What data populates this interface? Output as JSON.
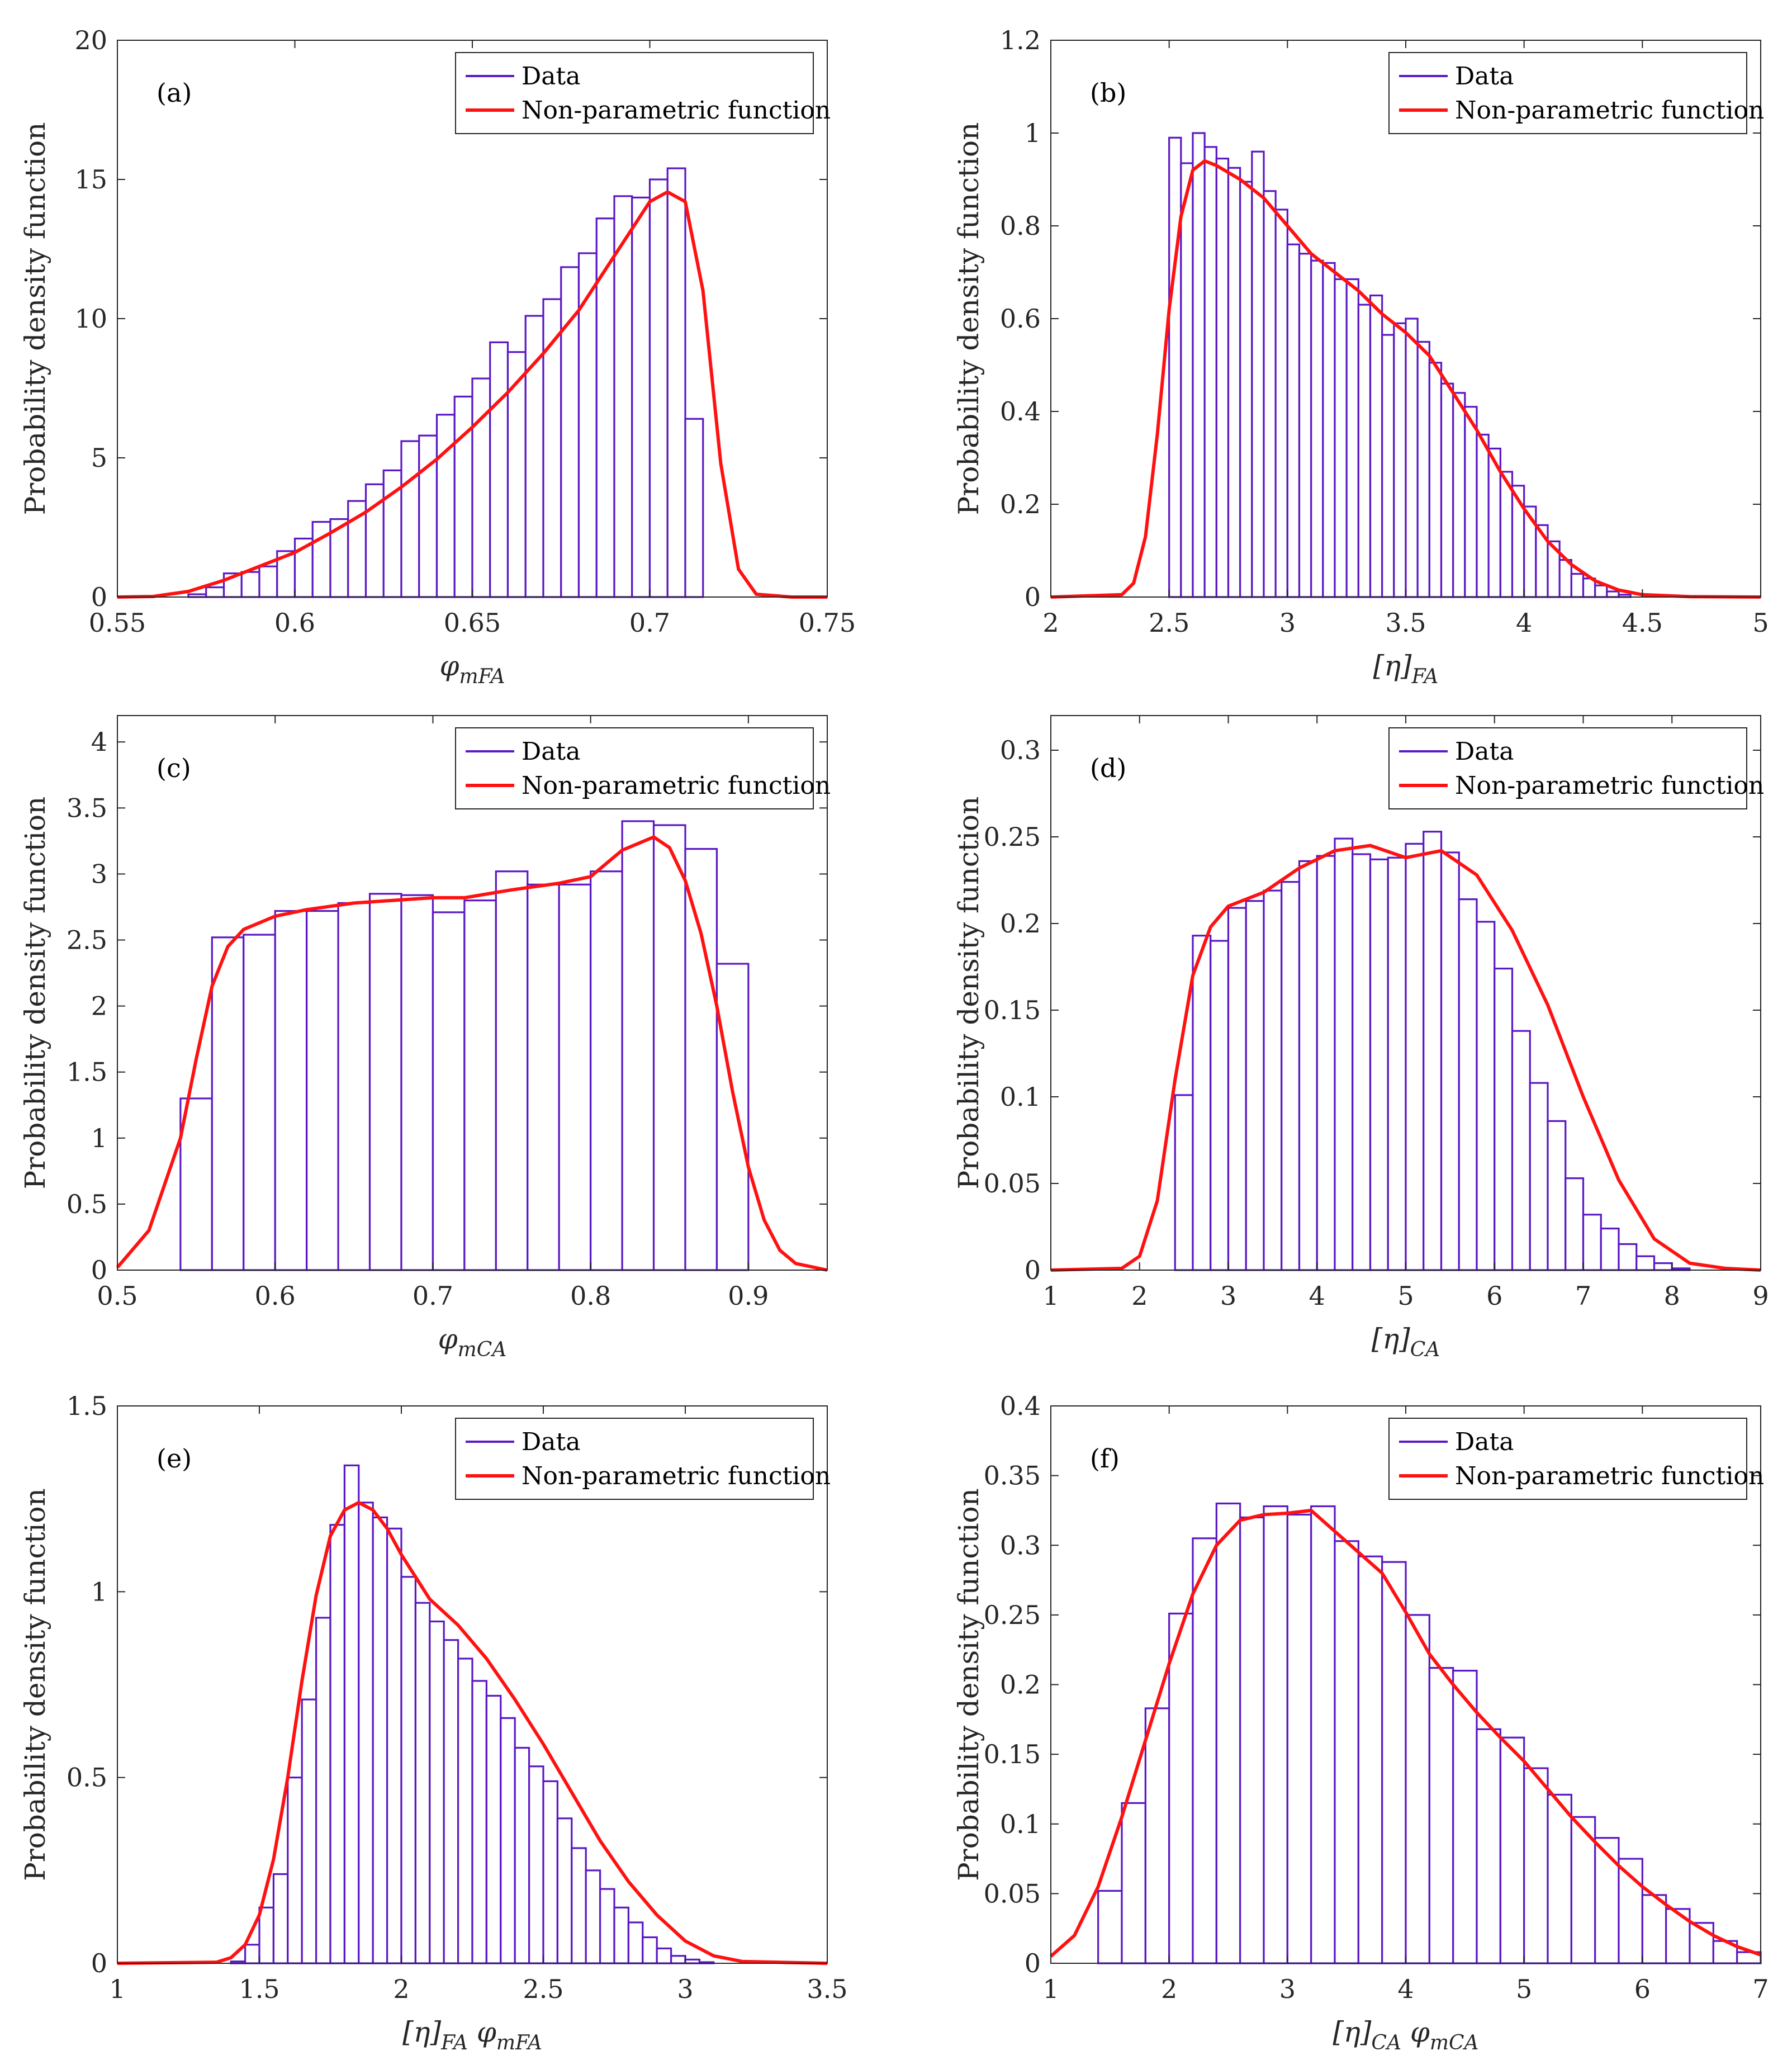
{
  "colors": {
    "data": "#5b18c4",
    "curve": "#ff1111",
    "axis": "#262626"
  },
  "chart_data": [
    {
      "type": "bar",
      "panel_label": "(a)",
      "xlabel_main": "φ",
      "xlabel_sub": "mFA",
      "xlabel_prefix": "",
      "ylabel": "Probability density function",
      "xlim": [
        0.55,
        0.75
      ],
      "ylim": [
        0,
        20
      ],
      "xticks": [
        0.55,
        0.6,
        0.65,
        0.7,
        0.75
      ],
      "xtick_labels": [
        "0.55",
        "0.6",
        "0.65",
        "0.7",
        "0.75"
      ],
      "yticks": [
        0,
        5,
        10,
        15,
        20
      ],
      "ytick_labels": [
        "0",
        "5",
        "10",
        "15",
        "20"
      ],
      "legend": [
        "Data",
        "Non-parametric function"
      ],
      "legend_location": "top-right",
      "bin_start": 0.57,
      "bin_width": 0.005,
      "values": [
        0.1,
        0.35,
        0.85,
        0.9,
        1.1,
        1.65,
        2.1,
        2.7,
        2.8,
        3.45,
        4.05,
        4.55,
        5.6,
        5.8,
        6.55,
        7.2,
        7.85,
        9.15,
        8.8,
        10.1,
        10.7,
        11.85,
        12.35,
        13.6,
        14.4,
        14.35,
        15.0,
        15.4,
        6.4
      ],
      "curve": {
        "x": [
          0.55,
          0.56,
          0.57,
          0.58,
          0.59,
          0.6,
          0.61,
          0.62,
          0.63,
          0.64,
          0.65,
          0.66,
          0.67,
          0.68,
          0.69,
          0.7,
          0.705,
          0.71,
          0.715,
          0.72,
          0.725,
          0.73,
          0.74,
          0.75
        ],
        "y": [
          0,
          0.02,
          0.2,
          0.6,
          1.1,
          1.6,
          2.3,
          3.05,
          3.95,
          4.95,
          6.1,
          7.35,
          8.75,
          10.3,
          12.25,
          14.2,
          14.55,
          14.2,
          11.0,
          4.8,
          1.0,
          0.1,
          0,
          0
        ]
      }
    },
    {
      "type": "bar",
      "panel_label": "(b)",
      "xlabel_main": "[η]",
      "xlabel_sub": "FA",
      "xlabel_prefix": "",
      "ylabel": "Probability density function",
      "xlim": [
        2,
        5
      ],
      "ylim": [
        0,
        1.2
      ],
      "xticks": [
        2,
        2.5,
        3,
        3.5,
        4,
        4.5,
        5
      ],
      "xtick_labels": [
        "2",
        "2.5",
        "3",
        "3.5",
        "4",
        "4.5",
        "5"
      ],
      "yticks": [
        0,
        0.2,
        0.4,
        0.6,
        0.8,
        1,
        1.2
      ],
      "ytick_labels": [
        "0",
        "0.2",
        "0.4",
        "0.6",
        "0.8",
        "1",
        "1.2"
      ],
      "legend": [
        "Data",
        "Non-parametric function"
      ],
      "legend_location": "top-right",
      "bin_start": 2.5,
      "bin_width": 0.05,
      "values": [
        0.99,
        0.935,
        1.0,
        0.97,
        0.945,
        0.925,
        0.895,
        0.96,
        0.875,
        0.835,
        0.76,
        0.74,
        0.725,
        0.72,
        0.685,
        0.685,
        0.63,
        0.65,
        0.565,
        0.59,
        0.6,
        0.55,
        0.505,
        0.46,
        0.44,
        0.41,
        0.35,
        0.32,
        0.27,
        0.24,
        0.195,
        0.155,
        0.12,
        0.08,
        0.05,
        0.04,
        0.025,
        0.012,
        0.005
      ],
      "curve": {
        "x": [
          2,
          2.3,
          2.35,
          2.4,
          2.45,
          2.5,
          2.55,
          2.6,
          2.65,
          2.7,
          2.8,
          2.9,
          3.0,
          3.1,
          3.2,
          3.3,
          3.4,
          3.5,
          3.6,
          3.7,
          3.8,
          3.9,
          4.0,
          4.1,
          4.2,
          4.3,
          4.4,
          4.5,
          4.7,
          5
        ],
        "y": [
          0,
          0.005,
          0.03,
          0.13,
          0.35,
          0.62,
          0.82,
          0.92,
          0.94,
          0.93,
          0.9,
          0.86,
          0.8,
          0.74,
          0.7,
          0.66,
          0.61,
          0.57,
          0.52,
          0.44,
          0.36,
          0.27,
          0.19,
          0.12,
          0.07,
          0.035,
          0.015,
          0.005,
          0.001,
          0
        ]
      }
    },
    {
      "type": "bar",
      "panel_label": "(c)",
      "xlabel_main": "φ",
      "xlabel_sub": "mCA",
      "xlabel_prefix": "",
      "ylabel": "Probability density function",
      "xlim": [
        0.5,
        0.95
      ],
      "ylim": [
        0,
        4.2
      ],
      "xticks": [
        0.5,
        0.6,
        0.7,
        0.8,
        0.9
      ],
      "xtick_labels": [
        "0.5",
        "0.6",
        "0.7",
        "0.8",
        "0.9"
      ],
      "yticks": [
        0,
        0.5,
        1,
        1.5,
        2,
        2.5,
        3,
        3.5,
        4
      ],
      "ytick_labels": [
        "0",
        "0.5",
        "1",
        "1.5",
        "2",
        "2.5",
        "3",
        "3.5",
        "4"
      ],
      "legend": [
        "Data",
        "Non-parametric function"
      ],
      "legend_location": "top-right",
      "bin_start": 0.54,
      "bin_width": 0.02,
      "values": [
        1.3,
        2.52,
        2.54,
        2.72,
        2.72,
        2.78,
        2.85,
        2.84,
        2.71,
        2.8,
        3.02,
        2.92,
        2.92,
        3.02,
        3.4,
        3.37,
        3.19,
        2.32
      ],
      "curve": {
        "x": [
          0.5,
          0.52,
          0.54,
          0.55,
          0.56,
          0.57,
          0.58,
          0.6,
          0.62,
          0.65,
          0.7,
          0.72,
          0.75,
          0.78,
          0.8,
          0.82,
          0.84,
          0.85,
          0.86,
          0.87,
          0.88,
          0.89,
          0.9,
          0.91,
          0.92,
          0.93,
          0.95
        ],
        "y": [
          0.02,
          0.3,
          1.0,
          1.6,
          2.15,
          2.45,
          2.58,
          2.68,
          2.73,
          2.78,
          2.82,
          2.82,
          2.88,
          2.93,
          2.98,
          3.18,
          3.28,
          3.2,
          2.95,
          2.55,
          2.0,
          1.35,
          0.78,
          0.38,
          0.15,
          0.05,
          0
        ]
      }
    },
    {
      "type": "bar",
      "panel_label": "(d)",
      "xlabel_main": "[η]",
      "xlabel_sub": "CA",
      "xlabel_prefix": "",
      "ylabel": "Probability density function",
      "xlim": [
        1,
        9
      ],
      "ylim": [
        0,
        0.32
      ],
      "xticks": [
        1,
        2,
        3,
        4,
        5,
        6,
        7,
        8,
        9
      ],
      "xtick_labels": [
        "1",
        "2",
        "3",
        "4",
        "5",
        "6",
        "7",
        "8",
        "9"
      ],
      "yticks": [
        0,
        0.05,
        0.1,
        0.15,
        0.2,
        0.25,
        0.3
      ],
      "ytick_labels": [
        "0",
        "0.05",
        "0.1",
        "0.15",
        "0.2",
        "0.25",
        "0.3"
      ],
      "legend": [
        "Data",
        "Non-parametric function"
      ],
      "legend_location": "top-right",
      "bin_start": 2.4,
      "bin_width": 0.2,
      "values": [
        0.101,
        0.193,
        0.19,
        0.209,
        0.213,
        0.219,
        0.224,
        0.236,
        0.239,
        0.249,
        0.24,
        0.237,
        0.238,
        0.246,
        0.253,
        0.241,
        0.214,
        0.201,
        0.174,
        0.138,
        0.108,
        0.086,
        0.053,
        0.032,
        0.024,
        0.015,
        0.008,
        0.004,
        0.001
      ],
      "curve": {
        "x": [
          1,
          1.8,
          2.0,
          2.2,
          2.4,
          2.6,
          2.8,
          3.0,
          3.4,
          3.8,
          4.2,
          4.6,
          5.0,
          5.4,
          5.8,
          6.2,
          6.6,
          7.0,
          7.4,
          7.8,
          8.2,
          8.6,
          9
        ],
        "y": [
          0,
          0.001,
          0.008,
          0.04,
          0.11,
          0.17,
          0.198,
          0.21,
          0.218,
          0.232,
          0.242,
          0.245,
          0.238,
          0.242,
          0.228,
          0.196,
          0.153,
          0.1,
          0.052,
          0.018,
          0.004,
          0.001,
          0
        ]
      }
    },
    {
      "type": "bar",
      "panel_label": "(e)",
      "xlabel_main": "φ",
      "xlabel_sub": "mFA",
      "xlabel_prefix": "[η]",
      "xlabel_prefix_sub": "FA",
      "ylabel": "Probability density function",
      "xlim": [
        1,
        3.5
      ],
      "ylim": [
        0,
        1.5
      ],
      "xticks": [
        1,
        1.5,
        2,
        2.5,
        3,
        3.5
      ],
      "xtick_labels": [
        "1",
        "1.5",
        "2",
        "2.5",
        "3",
        "3.5"
      ],
      "yticks": [
        0,
        0.5,
        1,
        1.5
      ],
      "ytick_labels": [
        "0",
        "0.5",
        "1",
        "1.5"
      ],
      "legend": [
        "Data",
        "Non-parametric function"
      ],
      "legend_location": "top-right",
      "bin_start": 1.4,
      "bin_width": 0.05,
      "values": [
        0.005,
        0.05,
        0.15,
        0.24,
        0.5,
        0.71,
        0.93,
        1.18,
        1.34,
        1.24,
        1.2,
        1.17,
        1.04,
        0.97,
        0.92,
        0.87,
        0.82,
        0.76,
        0.72,
        0.66,
        0.58,
        0.53,
        0.49,
        0.39,
        0.31,
        0.25,
        0.2,
        0.15,
        0.11,
        0.07,
        0.04,
        0.02,
        0.01,
        0.003
      ],
      "curve": {
        "x": [
          1,
          1.35,
          1.4,
          1.45,
          1.5,
          1.55,
          1.6,
          1.65,
          1.7,
          1.75,
          1.8,
          1.85,
          1.9,
          1.95,
          2.0,
          2.1,
          2.2,
          2.3,
          2.4,
          2.5,
          2.6,
          2.7,
          2.8,
          2.9,
          3.0,
          3.1,
          3.2,
          3.5
        ],
        "y": [
          0,
          0.003,
          0.015,
          0.05,
          0.13,
          0.28,
          0.5,
          0.76,
          0.99,
          1.15,
          1.22,
          1.24,
          1.22,
          1.17,
          1.1,
          0.98,
          0.91,
          0.82,
          0.71,
          0.59,
          0.46,
          0.33,
          0.22,
          0.13,
          0.06,
          0.02,
          0.005,
          0
        ]
      }
    },
    {
      "type": "bar",
      "panel_label": "(f)",
      "xlabel_main": "φ",
      "xlabel_sub": "mCA",
      "xlabel_prefix": "[η]",
      "xlabel_prefix_sub": "CA",
      "ylabel": "Probability density function",
      "xlim": [
        1,
        7
      ],
      "ylim": [
        0,
        0.4
      ],
      "xticks": [
        1,
        2,
        3,
        4,
        5,
        6,
        7
      ],
      "xtick_labels": [
        "1",
        "2",
        "3",
        "4",
        "5",
        "6",
        "7"
      ],
      "yticks": [
        0,
        0.05,
        0.1,
        0.15,
        0.2,
        0.25,
        0.3,
        0.35,
        0.4
      ],
      "ytick_labels": [
        "0",
        "0.05",
        "0.1",
        "0.15",
        "0.2",
        "0.25",
        "0.3",
        "0.35",
        "0.4"
      ],
      "legend": [
        "Data",
        "Non-parametric function"
      ],
      "legend_location": "top-right",
      "bin_start": 1.4,
      "bin_width": 0.2,
      "values": [
        0.052,
        0.115,
        0.183,
        0.251,
        0.305,
        0.33,
        0.32,
        0.328,
        0.322,
        0.328,
        0.303,
        0.292,
        0.288,
        0.25,
        0.212,
        0.21,
        0.168,
        0.162,
        0.14,
        0.121,
        0.105,
        0.09,
        0.075,
        0.049,
        0.039,
        0.029,
        0.016,
        0.008
      ],
      "curve": {
        "x": [
          1,
          1.2,
          1.4,
          1.6,
          1.8,
          2.0,
          2.2,
          2.4,
          2.6,
          2.8,
          3.0,
          3.2,
          3.4,
          3.6,
          3.8,
          4.0,
          4.2,
          4.4,
          4.6,
          4.8,
          5.0,
          5.2,
          5.4,
          5.6,
          5.8,
          6.0,
          6.2,
          6.4,
          6.6,
          6.8,
          7.0
        ],
        "y": [
          0.005,
          0.02,
          0.055,
          0.105,
          0.16,
          0.215,
          0.265,
          0.3,
          0.318,
          0.322,
          0.323,
          0.325,
          0.31,
          0.295,
          0.28,
          0.252,
          0.222,
          0.2,
          0.18,
          0.162,
          0.145,
          0.125,
          0.105,
          0.087,
          0.07,
          0.055,
          0.042,
          0.03,
          0.02,
          0.012,
          0.006
        ]
      }
    }
  ]
}
